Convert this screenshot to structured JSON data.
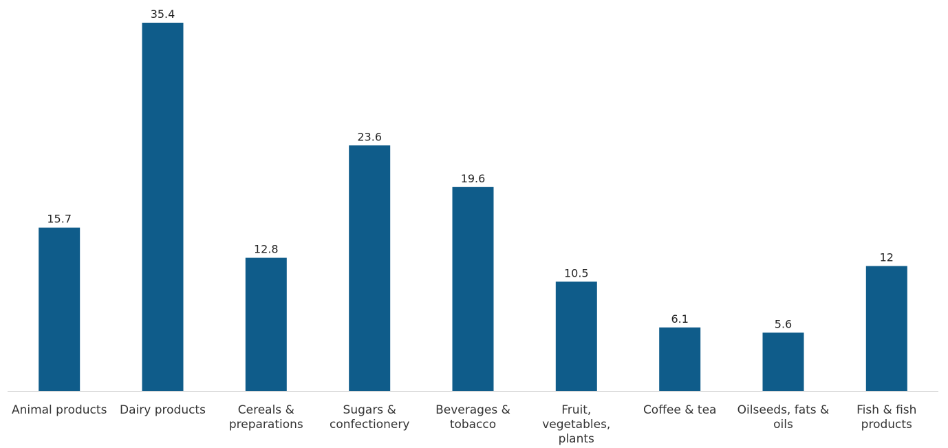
{
  "chart_data": {
    "type": "bar",
    "categories": [
      "Animal products",
      "Dairy products",
      "Cereals & preparations",
      "Sugars & confectionery",
      "Beverages & tobacco",
      "Fruit, vegetables, plants",
      "Coffee & tea",
      "Oilseeds, fats & oils",
      "Fish & fish products"
    ],
    "category_lines": [
      [
        "Animal products"
      ],
      [
        "Dairy products"
      ],
      [
        "Cereals &",
        "preparations"
      ],
      [
        "Sugars &",
        "confectionery"
      ],
      [
        "Beverages &",
        "tobacco"
      ],
      [
        "Fruit,",
        "vegetables,",
        "plants"
      ],
      [
        "Coffee & tea"
      ],
      [
        "Oilseeds, fats &",
        "oils"
      ],
      [
        "Fish & fish",
        "products"
      ]
    ],
    "values": [
      15.7,
      35.4,
      12.8,
      23.6,
      19.6,
      10.5,
      6.1,
      5.6,
      12
    ],
    "value_labels": [
      "15.7",
      "35.4",
      "12.8",
      "23.6",
      "19.6",
      "10.5",
      "6.1",
      "5.6",
      "12"
    ],
    "bar_color": "#0f5c8a",
    "title": "",
    "xlabel": "",
    "ylabel": "",
    "ylim": [
      0,
      36
    ],
    "grid": false,
    "legend": "none"
  }
}
